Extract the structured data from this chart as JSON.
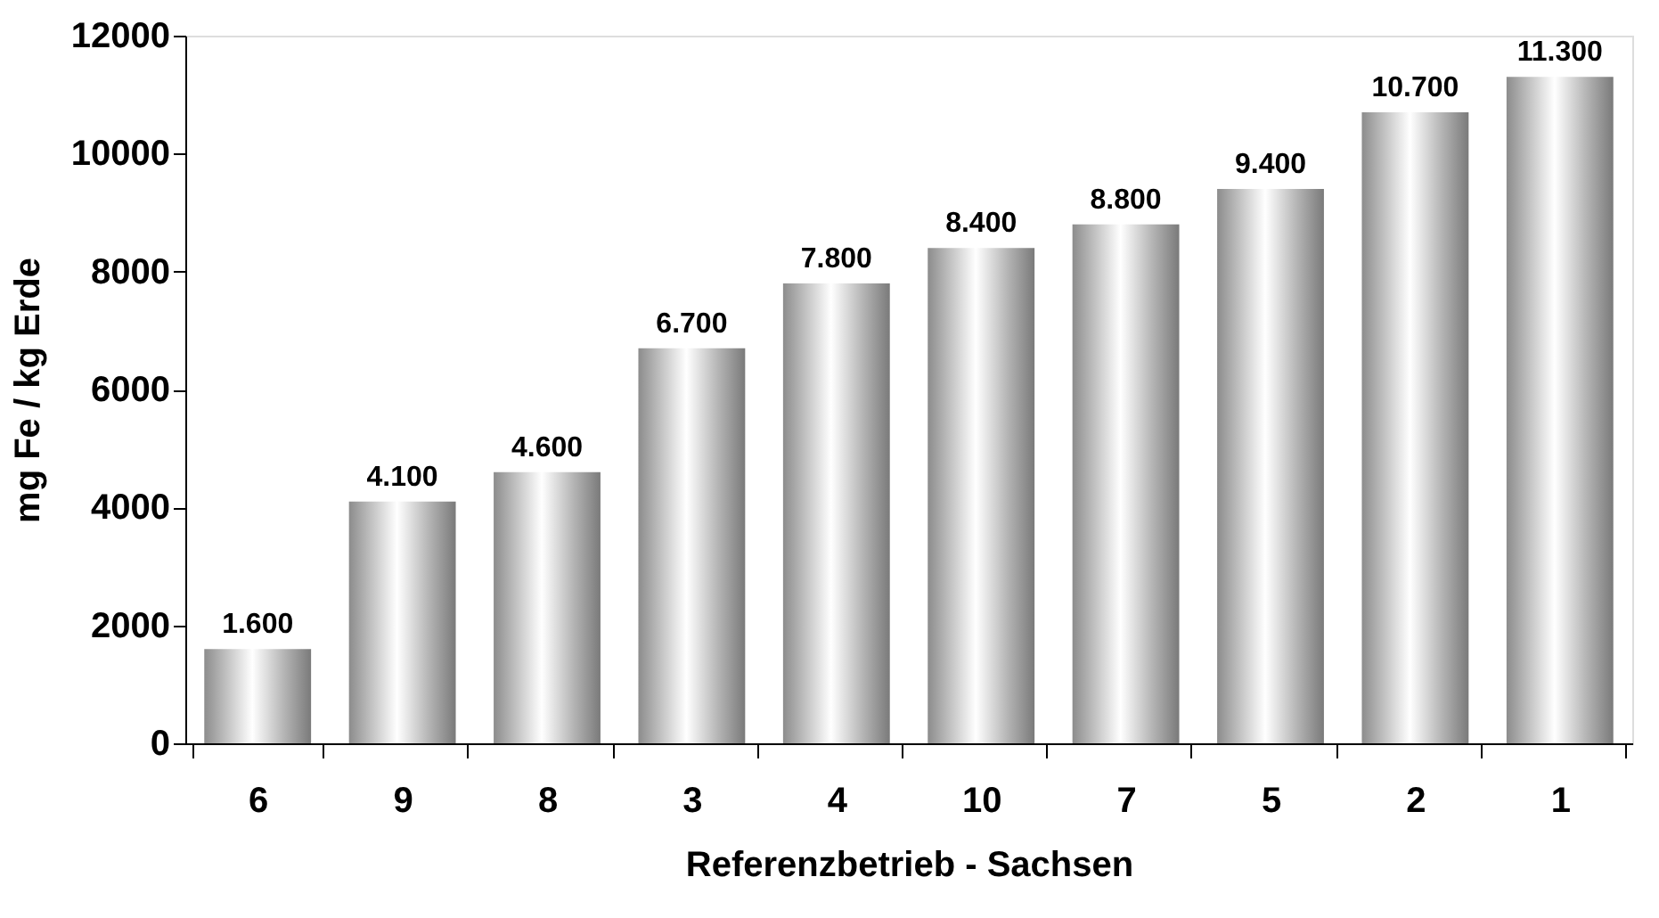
{
  "chart_data": {
    "type": "bar",
    "xlabel": "Referenzbetrieb - Sachsen",
    "ylabel": "mg Fe / kg Erde",
    "categories": [
      "6",
      "9",
      "8",
      "3",
      "4",
      "10",
      "7",
      "5",
      "2",
      "1"
    ],
    "values": [
      1600,
      4100,
      4600,
      6700,
      7800,
      8400,
      8800,
      9400,
      10700,
      11300
    ],
    "value_labels": [
      "1.600",
      "4.100",
      "4.600",
      "6.700",
      "7.800",
      "8.400",
      "8.800",
      "9.400",
      "10.700",
      "11.300"
    ],
    "color": "#b4b4b4",
    "ylim": [
      0,
      12000
    ],
    "yticks": [
      0,
      2000,
      4000,
      6000,
      8000,
      10000,
      12000
    ],
    "grid": false
  }
}
